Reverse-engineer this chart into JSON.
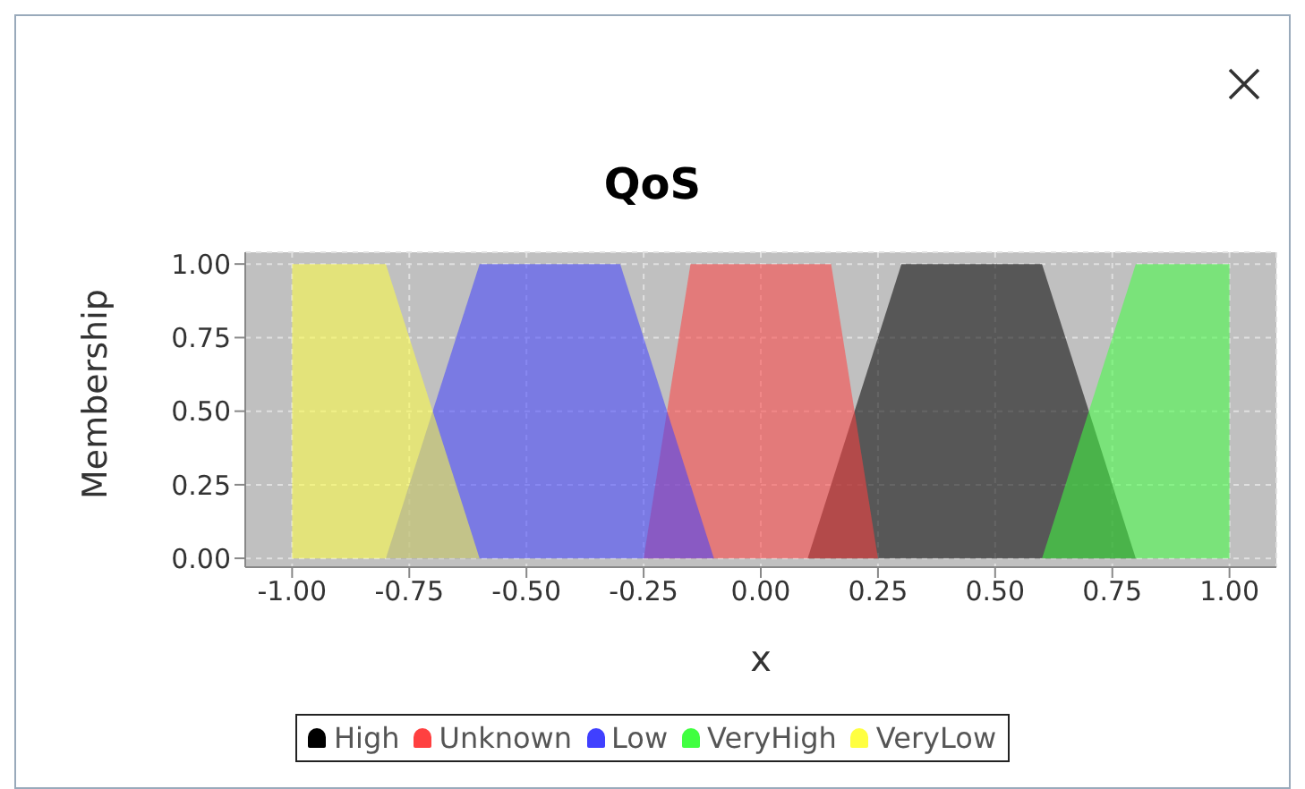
{
  "chart_data": {
    "type": "area",
    "title": "QoS",
    "xlabel": "x",
    "ylabel": "Membership",
    "xlim": [
      -1.1,
      1.1
    ],
    "ylim": [
      -0.03,
      1.04
    ],
    "xticks": [
      {
        "value": -1,
        "label": "-1.00"
      },
      {
        "value": -0.75,
        "label": "-0.75"
      },
      {
        "value": -0.5,
        "label": "-0.50"
      },
      {
        "value": -0.25,
        "label": "-0.25"
      },
      {
        "value": 0,
        "label": "0.00"
      },
      {
        "value": 0.25,
        "label": "0.25"
      },
      {
        "value": 0.5,
        "label": "0.50"
      },
      {
        "value": 0.75,
        "label": "0.75"
      },
      {
        "value": 1,
        "label": "1.00"
      }
    ],
    "yticks": [
      {
        "value": 0,
        "label": "0.00"
      },
      {
        "value": 0.25,
        "label": "0.25"
      },
      {
        "value": 0.5,
        "label": "0.50"
      },
      {
        "value": 0.75,
        "label": "0.75"
      },
      {
        "value": 1,
        "label": "1.00"
      }
    ],
    "grid": true,
    "legend": "bottom",
    "series": [
      {
        "name": "High",
        "color": "#000000",
        "x": [
          0.1,
          0.3,
          0.6,
          0.8
        ],
        "values": [
          0,
          1,
          1,
          0
        ]
      },
      {
        "name": "Unknown",
        "color": "#ff4040",
        "x": [
          -0.25,
          -0.15,
          0.15,
          0.25
        ],
        "values": [
          0,
          1,
          1,
          0
        ]
      },
      {
        "name": "Low",
        "color": "#4040ff",
        "x": [
          -0.8,
          -0.6,
          -0.3,
          -0.1
        ],
        "values": [
          0,
          1,
          1,
          0
        ]
      },
      {
        "name": "VeryHigh",
        "color": "#40ff40",
        "x": [
          0.6,
          0.8,
          1,
          1
        ],
        "values": [
          0,
          1,
          1,
          0
        ]
      },
      {
        "name": "VeryLow",
        "color": "#ffff40",
        "x": [
          -1,
          -1,
          -0.8,
          -0.6
        ],
        "values": [
          0,
          1,
          1,
          0
        ]
      }
    ]
  }
}
